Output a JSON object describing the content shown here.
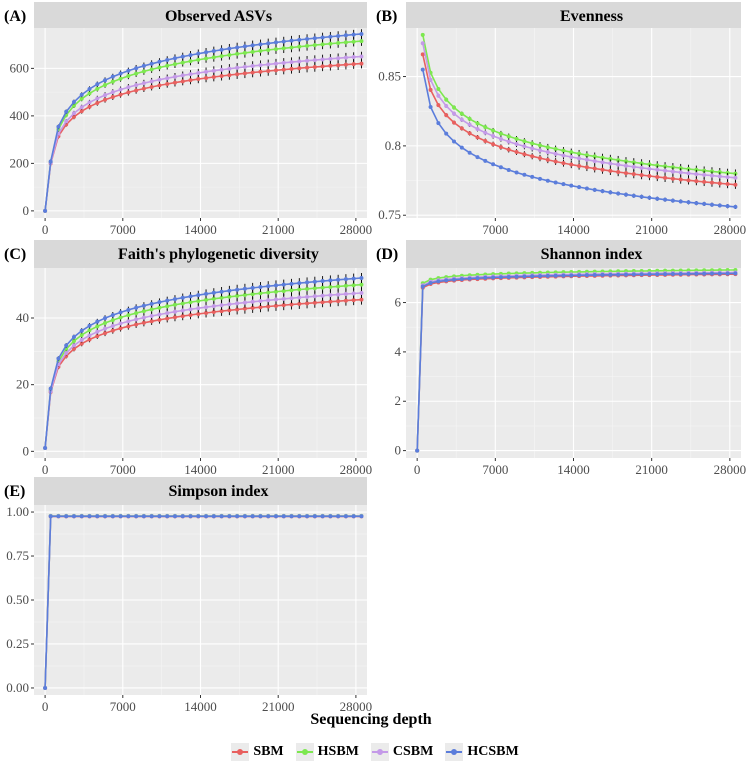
{
  "x_axis_label": "Sequencing depth",
  "legend": [
    {
      "name": "SBM",
      "color": "#e8605f"
    },
    {
      "name": "HSBM",
      "color": "#7de84f"
    },
    {
      "name": "CSBM",
      "color": "#c49ae8"
    },
    {
      "name": "HCSBM",
      "color": "#5b7ddb"
    }
  ],
  "chart_data": [
    {
      "type": "line",
      "panel": "(A)",
      "title": "Observed ASVs",
      "xlim": [
        -1000,
        29000
      ],
      "ylim": [
        -30,
        770
      ],
      "xticks": [
        0,
        7000,
        14000,
        21000,
        28000
      ],
      "yticks": [
        0,
        200,
        400,
        600
      ],
      "series": [
        {
          "name": "SBM",
          "curve": "log",
          "start": [
            0,
            0
          ],
          "first": [
            500,
            200
          ],
          "last": 620,
          "error": 20
        },
        {
          "name": "HSBM",
          "curve": "log",
          "start": [
            0,
            0
          ],
          "first": [
            500,
            205
          ],
          "last": 715,
          "error": 20
        },
        {
          "name": "CSBM",
          "curve": "log",
          "start": [
            0,
            0
          ],
          "first": [
            500,
            202
          ],
          "last": 650,
          "error": 20
        },
        {
          "name": "HCSBM",
          "curve": "log",
          "start": [
            0,
            0
          ],
          "first": [
            500,
            208
          ],
          "last": 745,
          "error": 20
        }
      ]
    },
    {
      "type": "line",
      "panel": "(B)",
      "title": "Evenness",
      "xlim": [
        -1000,
        29000
      ],
      "ylim": [
        0.748,
        0.885
      ],
      "xticks": [
        7000,
        14000,
        21000,
        28000
      ],
      "yticks": [
        0.75,
        0.8,
        0.85
      ],
      "series": [
        {
          "name": "SBM",
          "curve": "log",
          "start": null,
          "first": [
            500,
            0.866
          ],
          "last": 0.772,
          "error": 0.003
        },
        {
          "name": "HSBM",
          "curve": "log",
          "start": null,
          "first": [
            500,
            0.88
          ],
          "last": 0.78,
          "error": 0.003
        },
        {
          "name": "CSBM",
          "curve": "log",
          "start": null,
          "first": [
            500,
            0.874
          ],
          "last": 0.777,
          "error": 0.003
        },
        {
          "name": "HCSBM",
          "curve": "log",
          "start": null,
          "first": [
            500,
            0.855
          ],
          "last": 0.756,
          "error": 0.0015
        }
      ]
    },
    {
      "type": "line",
      "panel": "(C)",
      "title": "Faith's phylogenetic diversity",
      "xlim": [
        -1000,
        29000
      ],
      "ylim": [
        -2,
        55
      ],
      "xticks": [
        0,
        7000,
        14000,
        21000,
        28000
      ],
      "yticks": [
        0,
        20,
        40
      ],
      "series": [
        {
          "name": "SBM",
          "curve": "log",
          "start": [
            0,
            1
          ],
          "first": [
            500,
            17.8
          ],
          "last": 45.5,
          "error": 1.5
        },
        {
          "name": "HSBM",
          "curve": "log",
          "start": [
            0,
            1
          ],
          "first": [
            500,
            18.3
          ],
          "last": 50,
          "error": 1.5
        },
        {
          "name": "CSBM",
          "curve": "log",
          "start": [
            0,
            1
          ],
          "first": [
            500,
            18
          ],
          "last": 47.5,
          "error": 1.5
        },
        {
          "name": "HCSBM",
          "curve": "log",
          "start": [
            0,
            1
          ],
          "first": [
            500,
            18.8
          ],
          "last": 52,
          "error": 1.5
        }
      ]
    },
    {
      "type": "line",
      "panel": "(D)",
      "title": "Shannon index",
      "xlim": [
        -1000,
        29000
      ],
      "ylim": [
        -0.3,
        7.4
      ],
      "xticks": [
        0,
        7000,
        14000,
        21000,
        28000
      ],
      "yticks": [
        0,
        2,
        4,
        6
      ],
      "series": [
        {
          "name": "SBM",
          "curve": "log",
          "start": [
            0,
            0
          ],
          "first": [
            500,
            6.6
          ],
          "last": 7.15,
          "error": 0.06
        },
        {
          "name": "HSBM",
          "curve": "log",
          "start": [
            0,
            0
          ],
          "first": [
            500,
            6.78
          ],
          "last": 7.32,
          "error": 0.06
        },
        {
          "name": "CSBM",
          "curve": "log",
          "start": [
            0,
            0
          ],
          "first": [
            500,
            6.7
          ],
          "last": 7.22,
          "error": 0.06
        },
        {
          "name": "HCSBM",
          "curve": "log",
          "start": [
            0,
            0
          ],
          "first": [
            500,
            6.65
          ],
          "last": 7.18,
          "error": 0.06
        }
      ]
    },
    {
      "type": "line",
      "panel": "(E)",
      "title": "Simpson index",
      "xlim": [
        -1000,
        29000
      ],
      "ylim": [
        -0.04,
        1.04
      ],
      "xticks": [
        0,
        7000,
        14000,
        21000,
        28000
      ],
      "yticks": [
        0,
        0.25,
        0.5,
        0.75,
        1
      ],
      "ytick_labels": [
        "0.00",
        "0.25",
        "0.50",
        "0.75",
        "1.00"
      ],
      "series": [
        {
          "name": "SBM",
          "curve": "flat",
          "start": [
            0,
            0
          ],
          "first": [
            500,
            0.975
          ],
          "last": 0.975,
          "error": 0.004
        },
        {
          "name": "HSBM",
          "curve": "flat",
          "start": [
            0,
            0
          ],
          "first": [
            500,
            0.978
          ],
          "last": 0.978,
          "error": 0.004
        },
        {
          "name": "CSBM",
          "curve": "flat",
          "start": [
            0,
            0
          ],
          "first": [
            500,
            0.977
          ],
          "last": 0.977,
          "error": 0.004
        },
        {
          "name": "HCSBM",
          "curve": "flat",
          "start": [
            0,
            0
          ],
          "first": [
            500,
            0.976
          ],
          "last": 0.976,
          "error": 0.004
        }
      ]
    }
  ]
}
